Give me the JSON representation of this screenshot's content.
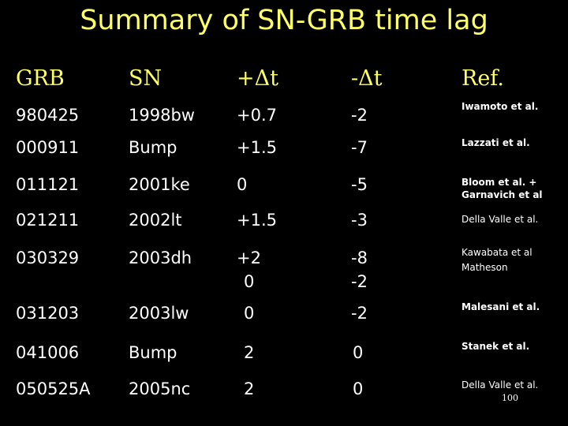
{
  "title": "Summary of SN-GRB time lag",
  "headers": {
    "grb": "GRB",
    "sn": "SN",
    "plus_dt": "+Δt",
    "minus_dt": "-Δt",
    "ref": "Ref."
  },
  "rows": [
    {
      "grb": "980425",
      "sn": "1998bw",
      "plus": "+0.7",
      "minus": "-2",
      "ref": [
        "Iwamoto et al."
      ]
    },
    {
      "grb": "000911",
      "sn": "Bump",
      "plus": "+1.5",
      "minus": "-7",
      "ref": [
        "Lazzati et al."
      ]
    },
    {
      "grb": "011121",
      "sn": "2001ke",
      "plus": "0",
      "minus": "-5",
      "ref": [
        "Bloom et al. +",
        "Garnavich et al"
      ]
    },
    {
      "grb": "021211",
      "sn": "2002lt",
      "plus": "+1.5",
      "minus": "-3",
      "ref": [
        "Della Valle et al."
      ]
    },
    {
      "grb": "030329",
      "sn": "2003dh",
      "plus": "+2",
      "minus": "-8",
      "plus2": "0",
      "minus2": "-2",
      "ref": [
        "Kawabata et al",
        "Matheson"
      ]
    },
    {
      "grb": "031203",
      "sn": "2003lw",
      "plus": "0",
      "minus": "-2",
      "ref": [
        "Malesani et al."
      ]
    },
    {
      "grb": "041006",
      "sn": "Bump",
      "plus": "2",
      "minus": "0",
      "ref": [
        "Stanek et al."
      ]
    },
    {
      "grb": "050525A",
      "sn": "2005nc",
      "plus": "2",
      "minus": "0",
      "ref": [
        "Della Valle et al."
      ]
    }
  ],
  "page_number": "100",
  "colors": {
    "background": "#000000",
    "title": "#ffff66",
    "header": "#ffff66",
    "text": "#ffffff"
  }
}
